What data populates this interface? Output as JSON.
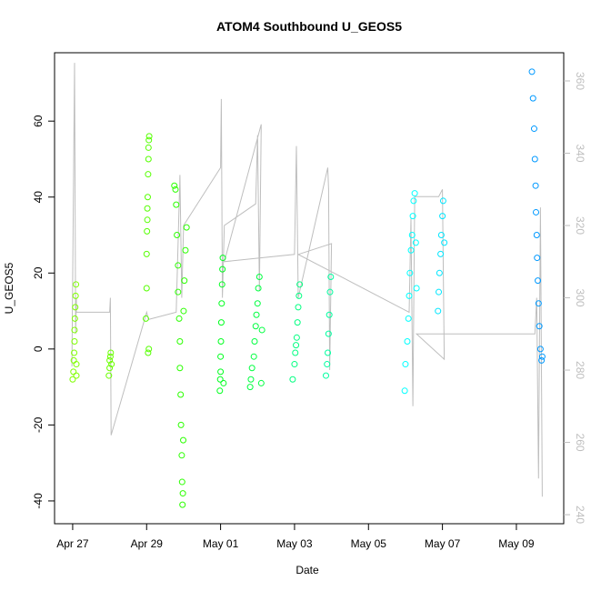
{
  "chart_data": {
    "type": "scatter",
    "title": "ATOM4 Southbound U_GEOS5",
    "x_label": "Date",
    "y_label": "U_GEOS5",
    "xlim": [
      -0.49,
      13.28
    ],
    "xticks": [
      {
        "value": 0,
        "label": "Apr 27"
      },
      {
        "value": 2,
        "label": "Apr 29"
      },
      {
        "value": 4,
        "label": "May 01"
      },
      {
        "value": 6,
        "label": "May 03"
      },
      {
        "value": 8,
        "label": "May 05"
      },
      {
        "value": 10,
        "label": "May 07"
      },
      {
        "value": 12,
        "label": "May 09"
      }
    ],
    "ylim": [
      -46,
      78
    ],
    "yticks": [
      -40,
      -20,
      0,
      20,
      40,
      60
    ],
    "y2lim": [
      237.5,
      367.8
    ],
    "y2ticks": [
      240,
      260,
      280,
      300,
      320,
      340,
      360
    ],
    "series": [
      {
        "color": "#7fff00",
        "x": [
          0.0,
          0.02,
          0.03,
          0.04,
          0.05,
          0.05,
          0.06,
          0.07,
          0.08,
          0.09,
          0.1,
          0.1
        ],
        "values": [
          -8,
          -6,
          -3,
          -1,
          2,
          5,
          8,
          11,
          14,
          17,
          -7,
          -4
        ]
      },
      {
        "color": "#6aff00",
        "x": [
          0.98,
          1.0,
          1.0,
          1.02,
          1.03,
          1.05
        ],
        "values": [
          -7,
          -5,
          -3,
          -2,
          -1,
          -4
        ]
      },
      {
        "color": "#55ff00",
        "x": [
          1.98,
          2.0,
          2.0,
          2.01,
          2.02,
          2.02,
          2.03,
          2.04,
          2.05,
          2.05,
          2.06,
          2.07,
          2.06,
          2.04
        ],
        "values": [
          8,
          16,
          25,
          31,
          34,
          37,
          40,
          46,
          50,
          53,
          55,
          56,
          0,
          -1
        ]
      },
      {
        "color": "#2bff00",
        "x": [
          2.75,
          2.78,
          2.8,
          2.82,
          2.85,
          2.85,
          2.88,
          2.9,
          2.9,
          2.92,
          2.93,
          2.95,
          2.96,
          2.97,
          2.98,
          2.99,
          3.0,
          3.02,
          3.05,
          3.08
        ],
        "values": [
          43,
          42,
          38,
          30,
          22,
          15,
          8,
          2,
          -5,
          -12,
          -20,
          -28,
          -35,
          -41,
          -38,
          -24,
          10,
          18,
          26,
          32
        ]
      },
      {
        "color": "#00ff1f",
        "x": [
          3.98,
          3.99,
          4.0,
          4.0,
          4.01,
          4.02,
          4.03,
          4.04,
          4.05,
          4.06,
          4.08
        ],
        "values": [
          -11,
          -8,
          -6,
          -2,
          2,
          7,
          12,
          17,
          21,
          24,
          -9
        ]
      },
      {
        "color": "#00ff40",
        "x": [
          4.8,
          4.82,
          4.85,
          4.9,
          4.92,
          4.95,
          4.97,
          5.0,
          5.02,
          5.05,
          5.1,
          5.12
        ],
        "values": [
          -10,
          -8,
          -5,
          -2,
          2,
          6,
          9,
          12,
          16,
          19,
          -9,
          5
        ]
      },
      {
        "color": "#00ff80",
        "x": [
          5.95,
          6.0,
          6.02,
          6.04,
          6.06,
          6.08,
          6.1,
          6.12,
          6.14
        ],
        "values": [
          -8,
          -4,
          -1,
          1,
          3,
          7,
          11,
          14,
          17
        ]
      },
      {
        "color": "#00ffa0",
        "x": [
          6.85,
          6.88,
          6.9,
          6.92,
          6.94,
          6.96,
          6.98
        ],
        "values": [
          -7,
          -4,
          -1,
          4,
          9,
          15,
          19
        ]
      },
      {
        "color": "#00ffff",
        "x": [
          8.98,
          9.0,
          9.05,
          9.08,
          9.1,
          9.12,
          9.15,
          9.18,
          9.2,
          9.22,
          9.25,
          9.28,
          9.3
        ],
        "values": [
          -11,
          -4,
          2,
          8,
          14,
          20,
          26,
          30,
          35,
          39,
          41,
          28,
          16
        ]
      },
      {
        "color": "#00e6ff",
        "x": [
          9.88,
          9.9,
          9.92,
          9.95,
          9.97,
          10.0,
          10.02,
          10.05
        ],
        "values": [
          10,
          15,
          20,
          25,
          30,
          35,
          39,
          28
        ]
      },
      {
        "color": "#0099ff",
        "x": [
          12.42,
          12.45,
          12.48,
          12.5,
          12.52,
          12.53,
          12.55,
          12.56,
          12.58,
          12.6,
          12.62,
          12.65,
          12.68,
          12.7
        ],
        "values": [
          73,
          66,
          58,
          50,
          43,
          36,
          30,
          24,
          18,
          12,
          6,
          0,
          -3,
          -2
        ]
      },
      {
        "type": "line",
        "axis": "y2",
        "color": "#bebebe",
        "x": [
          -0.02,
          0.05,
          0.08,
          0.1,
          0.1,
          1.0,
          1.02,
          1.04,
          2.0,
          2.05,
          2.8,
          2.9,
          2.95,
          3.0,
          4.0,
          4.02,
          4.05,
          4.1,
          4.95,
          5.0,
          5.05,
          5.1,
          4.1,
          6.0,
          6.05,
          6.1,
          6.9,
          6.92,
          6.95,
          7.0,
          6.1,
          9.1,
          9.15,
          9.2,
          9.25,
          9.9,
          10.0,
          10.05,
          9.3,
          12.5,
          12.55,
          12.6,
          12.65,
          12.7
        ],
        "values": [
          281,
          365,
          290,
          300,
          296,
          296,
          300,
          262,
          296,
          294,
          296,
          334,
          300,
          320,
          336,
          355,
          300,
          320,
          326,
          345,
          302,
          348,
          310,
          312,
          342,
          300,
          336,
          330,
          280,
          315,
          312,
          296,
          322,
          270,
          328,
          328,
          330,
          283,
          290,
          290,
          300,
          250,
          325,
          245
        ]
      }
    ]
  }
}
